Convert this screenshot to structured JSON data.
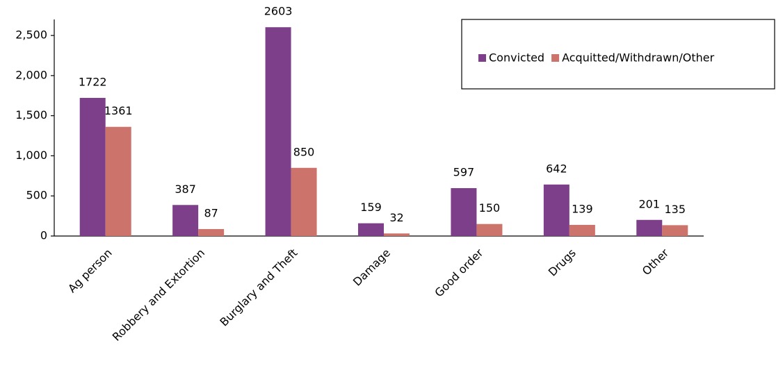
{
  "chart_data": {
    "type": "bar",
    "categories": [
      "Ag person",
      "Robbery and Extortion",
      "Burglary and Theft",
      "Damage",
      "Good order",
      "Drugs",
      "Other"
    ],
    "series": [
      {
        "name": "Convicted",
        "color": "#7e3f8a",
        "values": [
          1722,
          387,
          2603,
          159,
          597,
          642,
          201
        ]
      },
      {
        "name": "Acquitted/Withdrawn/Other",
        "color": "#cc736b",
        "values": [
          1361,
          87,
          850,
          32,
          150,
          139,
          135
        ]
      }
    ],
    "ylim": [
      0,
      2700
    ],
    "yticks": [
      0,
      500,
      {
        "value": 1000,
        "label": "1,000"
      },
      {
        "value": 1500,
        "label": "1,500"
      },
      {
        "value": 2000,
        "label": "2,000"
      },
      {
        "value": 2500,
        "label": "2,500"
      }
    ],
    "legend": "top-right"
  }
}
